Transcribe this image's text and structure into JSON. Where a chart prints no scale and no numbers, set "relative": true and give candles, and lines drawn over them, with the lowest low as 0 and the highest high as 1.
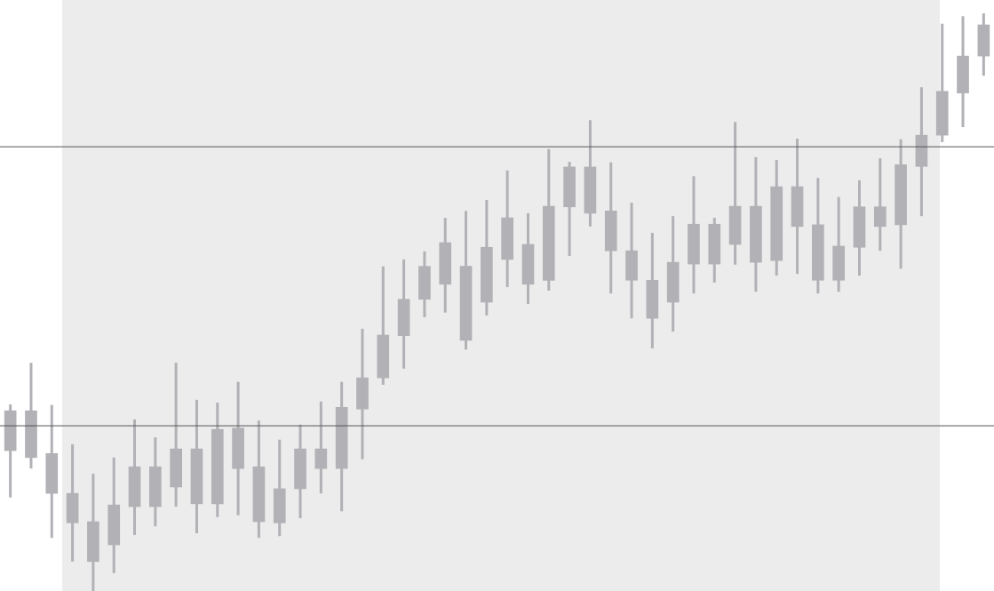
{
  "chart_data": {
    "type": "candlestick",
    "relative": true,
    "color": "#b1b1b6",
    "categories": [
      null,
      null,
      null,
      null,
      null,
      null,
      null,
      null,
      null,
      null,
      null,
      null,
      null,
      null,
      null,
      null,
      null,
      null,
      null,
      null,
      null,
      null,
      null,
      null,
      null,
      null,
      null,
      null,
      null,
      null,
      null,
      null,
      null,
      null,
      null,
      null,
      null,
      null,
      null,
      null,
      null,
      null,
      null,
      null,
      null,
      null,
      null,
      null
    ],
    "ohlc": [
      [
        0.243,
        0.323,
        0.162,
        0.312
      ],
      [
        0.231,
        0.395,
        0.212,
        0.312
      ],
      [
        0.169,
        0.322,
        0.092,
        0.238
      ],
      [
        0.118,
        0.254,
        0.051,
        0.169
      ],
      [
        0.051,
        0.203,
        0,
        0.12
      ],
      [
        0.08,
        0.231,
        0.031,
        0.149
      ],
      [
        0.146,
        0.297,
        0.097,
        0.215
      ],
      [
        0.146,
        0.266,
        0.112,
        0.215
      ],
      [
        0.18,
        0.395,
        0.146,
        0.246
      ],
      [
        0.151,
        0.331,
        0.1,
        0.246
      ],
      [
        0.151,
        0.326,
        0.128,
        0.28
      ],
      [
        0.212,
        0.362,
        0.131,
        0.282
      ],
      [
        0.12,
        0.295,
        0.092,
        0.215
      ],
      [
        0.118,
        0.262,
        0.095,
        0.177
      ],
      [
        0.177,
        0.288,
        0.126,
        0.246
      ],
      [
        0.212,
        0.328,
        0.169,
        0.246
      ],
      [
        0.212,
        0.362,
        0.138,
        0.318
      ],
      [
        0.315,
        0.454,
        0.228,
        0.369
      ],
      [
        0.369,
        0.562,
        0.357,
        0.443
      ],
      [
        0.442,
        0.574,
        0.385,
        0.505
      ],
      [
        0.505,
        0.588,
        0.474,
        0.562
      ],
      [
        0.531,
        0.646,
        0.482,
        0.603
      ],
      [
        0.434,
        0.658,
        0.418,
        0.562
      ],
      [
        0.5,
        0.677,
        0.477,
        0.595
      ],
      [
        0.574,
        0.728,
        0.526,
        0.646
      ],
      [
        0.531,
        0.654,
        0.497,
        0.6
      ],
      [
        0.538,
        0.765,
        0.52,
        0.666
      ],
      [
        0.665,
        0.743,
        0.58,
        0.734
      ],
      [
        0.654,
        0.815,
        0.631,
        0.734
      ],
      [
        0.589,
        0.742,
        0.515,
        0.658
      ],
      [
        0.538,
        0.672,
        0.472,
        0.589
      ],
      [
        0.472,
        0.62,
        0.42,
        0.538
      ],
      [
        0.5,
        0.649,
        0.449,
        0.569
      ],
      [
        0.566,
        0.718,
        0.515,
        0.635
      ],
      [
        0.566,
        0.646,
        0.534,
        0.635
      ],
      [
        0.6,
        0.812,
        0.565,
        0.666
      ],
      [
        0.569,
        0.751,
        0.518,
        0.666
      ],
      [
        0.572,
        0.746,
        0.546,
        0.7
      ],
      [
        0.631,
        0.783,
        0.549,
        0.7
      ],
      [
        0.538,
        0.715,
        0.515,
        0.634
      ],
      [
        0.538,
        0.682,
        0.518,
        0.597
      ],
      [
        0.595,
        0.711,
        0.546,
        0.665
      ],
      [
        0.631,
        0.749,
        0.589,
        0.665
      ],
      [
        0.634,
        0.782,
        0.558,
        0.738
      ],
      [
        0.735,
        0.872,
        0.649,
        0.789
      ],
      [
        0.789,
        0.982,
        0.777,
        0.865
      ],
      [
        0.862,
        0.995,
        0.803,
        0.926
      ],
      [
        0.926,
        1,
        0.892,
        0.98
      ]
    ],
    "ref_lines": [
      {
        "axis": "y",
        "value": 0.769,
        "color": "#555555"
      },
      {
        "axis": "y",
        "value": 0.286,
        "color": "#555555"
      }
    ]
  }
}
